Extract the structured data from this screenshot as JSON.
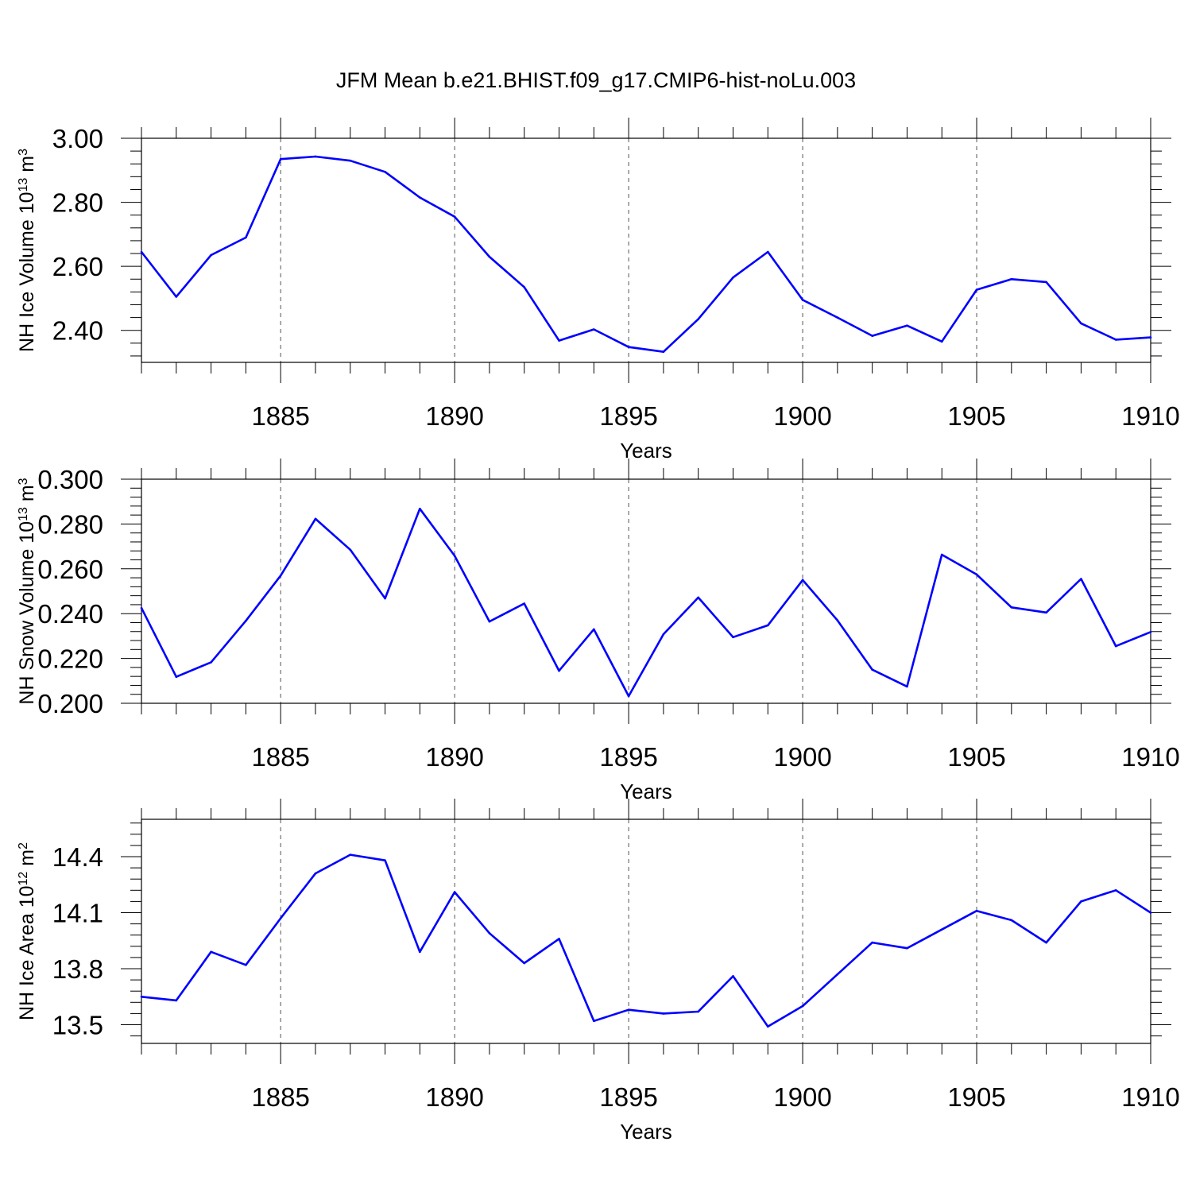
{
  "title": "JFM Mean b.e21.BHIST.f09_g17.CMIP6-hist-noLu.003",
  "colors": {
    "line": "#0000ff",
    "axis": "#000000",
    "grid": "#000000"
  },
  "chart_data": [
    {
      "type": "line",
      "ylabel": "NH Ice Volume 10",
      "ylabel_exp": "13",
      "ylabel_unit": " m",
      "ylabel_unit_exp": "3",
      "xlabel": "Years",
      "xlim": [
        1881,
        1910
      ],
      "ylim": [
        2.3,
        3.0
      ],
      "xticks": [
        "1885",
        "1890",
        "1895",
        "1900",
        "1905",
        "1910"
      ],
      "yticks": [
        "3.00",
        "2.80",
        "2.60",
        "2.40"
      ],
      "grid": "vertical dashed at major x ticks",
      "x": [
        1881,
        1882,
        1883,
        1884,
        1885,
        1886,
        1887,
        1888,
        1889,
        1890,
        1891,
        1892,
        1893,
        1894,
        1895,
        1896,
        1897,
        1898,
        1899,
        1900,
        1901,
        1902,
        1903,
        1904,
        1905,
        1906,
        1907,
        1908,
        1909,
        1910
      ],
      "y": [
        2.645,
        2.505,
        2.635,
        2.69,
        2.935,
        2.943,
        2.93,
        2.895,
        2.815,
        2.755,
        2.63,
        2.535,
        2.368,
        2.403,
        2.348,
        2.333,
        2.435,
        2.565,
        2.645,
        2.495,
        2.44,
        2.383,
        2.415,
        2.365,
        2.527,
        2.56,
        2.551,
        2.422,
        2.371,
        2.378
      ]
    },
    {
      "type": "line",
      "ylabel": "NH Snow Volume 10",
      "ylabel_exp": "13",
      "ylabel_unit": " m",
      "ylabel_unit_exp": "3",
      "xlabel": "Years",
      "xlim": [
        1881,
        1910
      ],
      "ylim": [
        0.2,
        0.3
      ],
      "xticks": [
        "1885",
        "1890",
        "1895",
        "1900",
        "1905",
        "1910"
      ],
      "yticks": [
        "0.300",
        "0.280",
        "0.260",
        "0.240",
        "0.220",
        "0.200"
      ],
      "grid": "vertical dashed at major x ticks",
      "x": [
        1881,
        1882,
        1883,
        1884,
        1885,
        1886,
        1887,
        1888,
        1889,
        1890,
        1891,
        1892,
        1893,
        1894,
        1895,
        1896,
        1897,
        1898,
        1899,
        1900,
        1901,
        1902,
        1903,
        1904,
        1905,
        1906,
        1907,
        1908,
        1909,
        1910
      ],
      "y": [
        0.2425,
        0.2118,
        0.2183,
        0.2368,
        0.257,
        0.2823,
        0.2685,
        0.2468,
        0.2868,
        0.2658,
        0.2365,
        0.2445,
        0.2145,
        0.233,
        0.2032,
        0.2308,
        0.2472,
        0.2295,
        0.2348,
        0.255,
        0.237,
        0.215,
        0.2075,
        0.2663,
        0.2575,
        0.2428,
        0.2405,
        0.2555,
        0.2255,
        0.2318
      ]
    },
    {
      "type": "line",
      "ylabel": "NH Ice Area 10",
      "ylabel_exp": "12",
      "ylabel_unit": " m",
      "ylabel_unit_exp": "2",
      "xlabel": "Years",
      "xlim": [
        1881,
        1910
      ],
      "ylim": [
        13.4,
        14.6
      ],
      "xticks": [
        "1885",
        "1890",
        "1895",
        "1900",
        "1905",
        "1910"
      ],
      "yticks": [
        "14.4",
        "14.1",
        "13.8",
        "13.5"
      ],
      "grid": "vertical dashed at major x ticks",
      "x": [
        1881,
        1882,
        1883,
        1884,
        1885,
        1886,
        1887,
        1888,
        1889,
        1890,
        1891,
        1892,
        1893,
        1894,
        1895,
        1896,
        1897,
        1898,
        1899,
        1900,
        1901,
        1902,
        1903,
        1904,
        1905,
        1906,
        1907,
        1908,
        1909,
        1910
      ],
      "y": [
        13.65,
        13.63,
        13.89,
        13.82,
        14.07,
        14.31,
        14.41,
        14.38,
        13.89,
        14.21,
        13.99,
        13.83,
        13.96,
        13.52,
        13.58,
        13.56,
        13.57,
        13.76,
        13.49,
        13.6,
        13.77,
        13.94,
        13.91,
        14.01,
        14.11,
        14.06,
        13.94,
        14.16,
        14.22,
        14.1
      ]
    }
  ]
}
